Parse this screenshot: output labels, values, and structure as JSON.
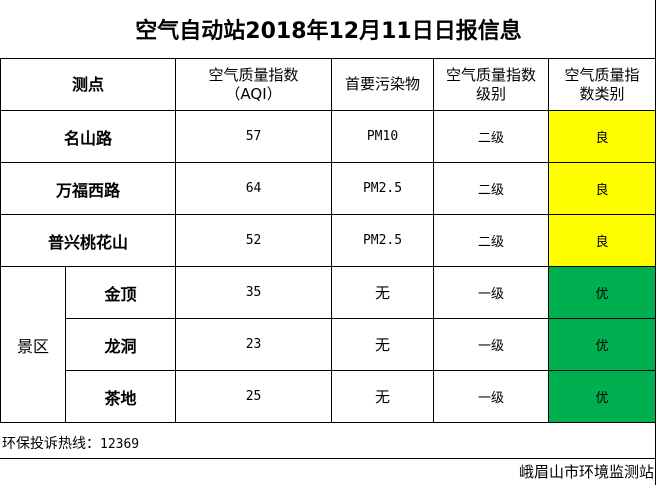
{
  "title": "空气自动站2018年12月11日日报信息",
  "headers": {
    "site": "测点",
    "aqi": "空气质量指数（AQI）",
    "pollutant": "首要污染物",
    "level": "空气质量指数级别",
    "category": "空气质量指数类别"
  },
  "rows": [
    {
      "site": "名山路",
      "aqi": "57",
      "pollutant": "PM10",
      "level": "二级",
      "category": "良"
    },
    {
      "site": "万福西路",
      "aqi": "64",
      "pollutant": "PM2.5",
      "level": "二级",
      "category": "良"
    },
    {
      "site": "普兴桃花山",
      "aqi": "52",
      "pollutant": "PM2.5",
      "level": "二级",
      "category": "良"
    }
  ],
  "scenic": {
    "group": "景区",
    "rows": [
      {
        "site": "金顶",
        "aqi": "35",
        "pollutant": "无",
        "level": "一级",
        "category": "优"
      },
      {
        "site": "龙洞",
        "aqi": "23",
        "pollutant": "无",
        "level": "一级",
        "category": "优"
      },
      {
        "site": "茶地",
        "aqi": "25",
        "pollutant": "无",
        "level": "一级",
        "category": "优"
      }
    ]
  },
  "colors": {
    "good": "#ffff00",
    "excellent": "#00b050"
  },
  "footer": {
    "hotline_label": "环保投诉热线：",
    "hotline_number": "12369",
    "issuer": "峨眉山市环境监测站"
  }
}
